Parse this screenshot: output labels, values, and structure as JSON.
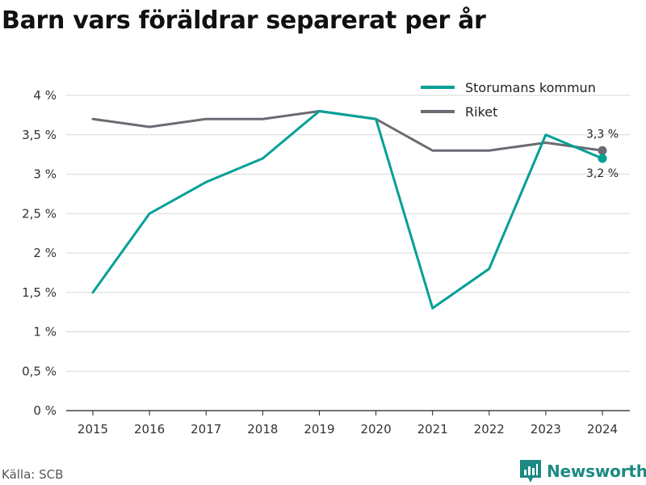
{
  "title": "Barn vars föräldrar separerat per år",
  "source": "Källa: SCB",
  "brand": "Newsworthy",
  "colors": {
    "storuman": "#00a096",
    "riket": "#6b6b73",
    "grid": "#d8d8d8",
    "axis": "#222222",
    "brand": "#1c8a82"
  },
  "chart_data": {
    "type": "line",
    "title": "Barn vars föräldrar separerat per år",
    "x": [
      2015,
      2016,
      2017,
      2018,
      2019,
      2020,
      2021,
      2022,
      2023,
      2024
    ],
    "ylim": [
      0,
      4
    ],
    "yticks": [
      0,
      0.5,
      1,
      1.5,
      2,
      2.5,
      3,
      3.5,
      4
    ],
    "ytick_labels": [
      "0 %",
      "0,5 %",
      "1 %",
      "1,5 %",
      "2 %",
      "2,5 %",
      "3 %",
      "3,5 %",
      "4 %"
    ],
    "grid": true,
    "legend_position": "top-right",
    "series": [
      {
        "name": "Storumans kommun",
        "color": "#00a096",
        "values": [
          1.5,
          2.5,
          2.9,
          3.2,
          3.8,
          3.7,
          1.3,
          1.8,
          3.5,
          3.2
        ],
        "end_label": "3,2 %"
      },
      {
        "name": "Riket",
        "color": "#6b6b73",
        "values": [
          3.7,
          3.6,
          3.7,
          3.7,
          3.8,
          3.7,
          3.3,
          3.3,
          3.4,
          3.3
        ],
        "end_label": "3,3 %"
      }
    ]
  }
}
